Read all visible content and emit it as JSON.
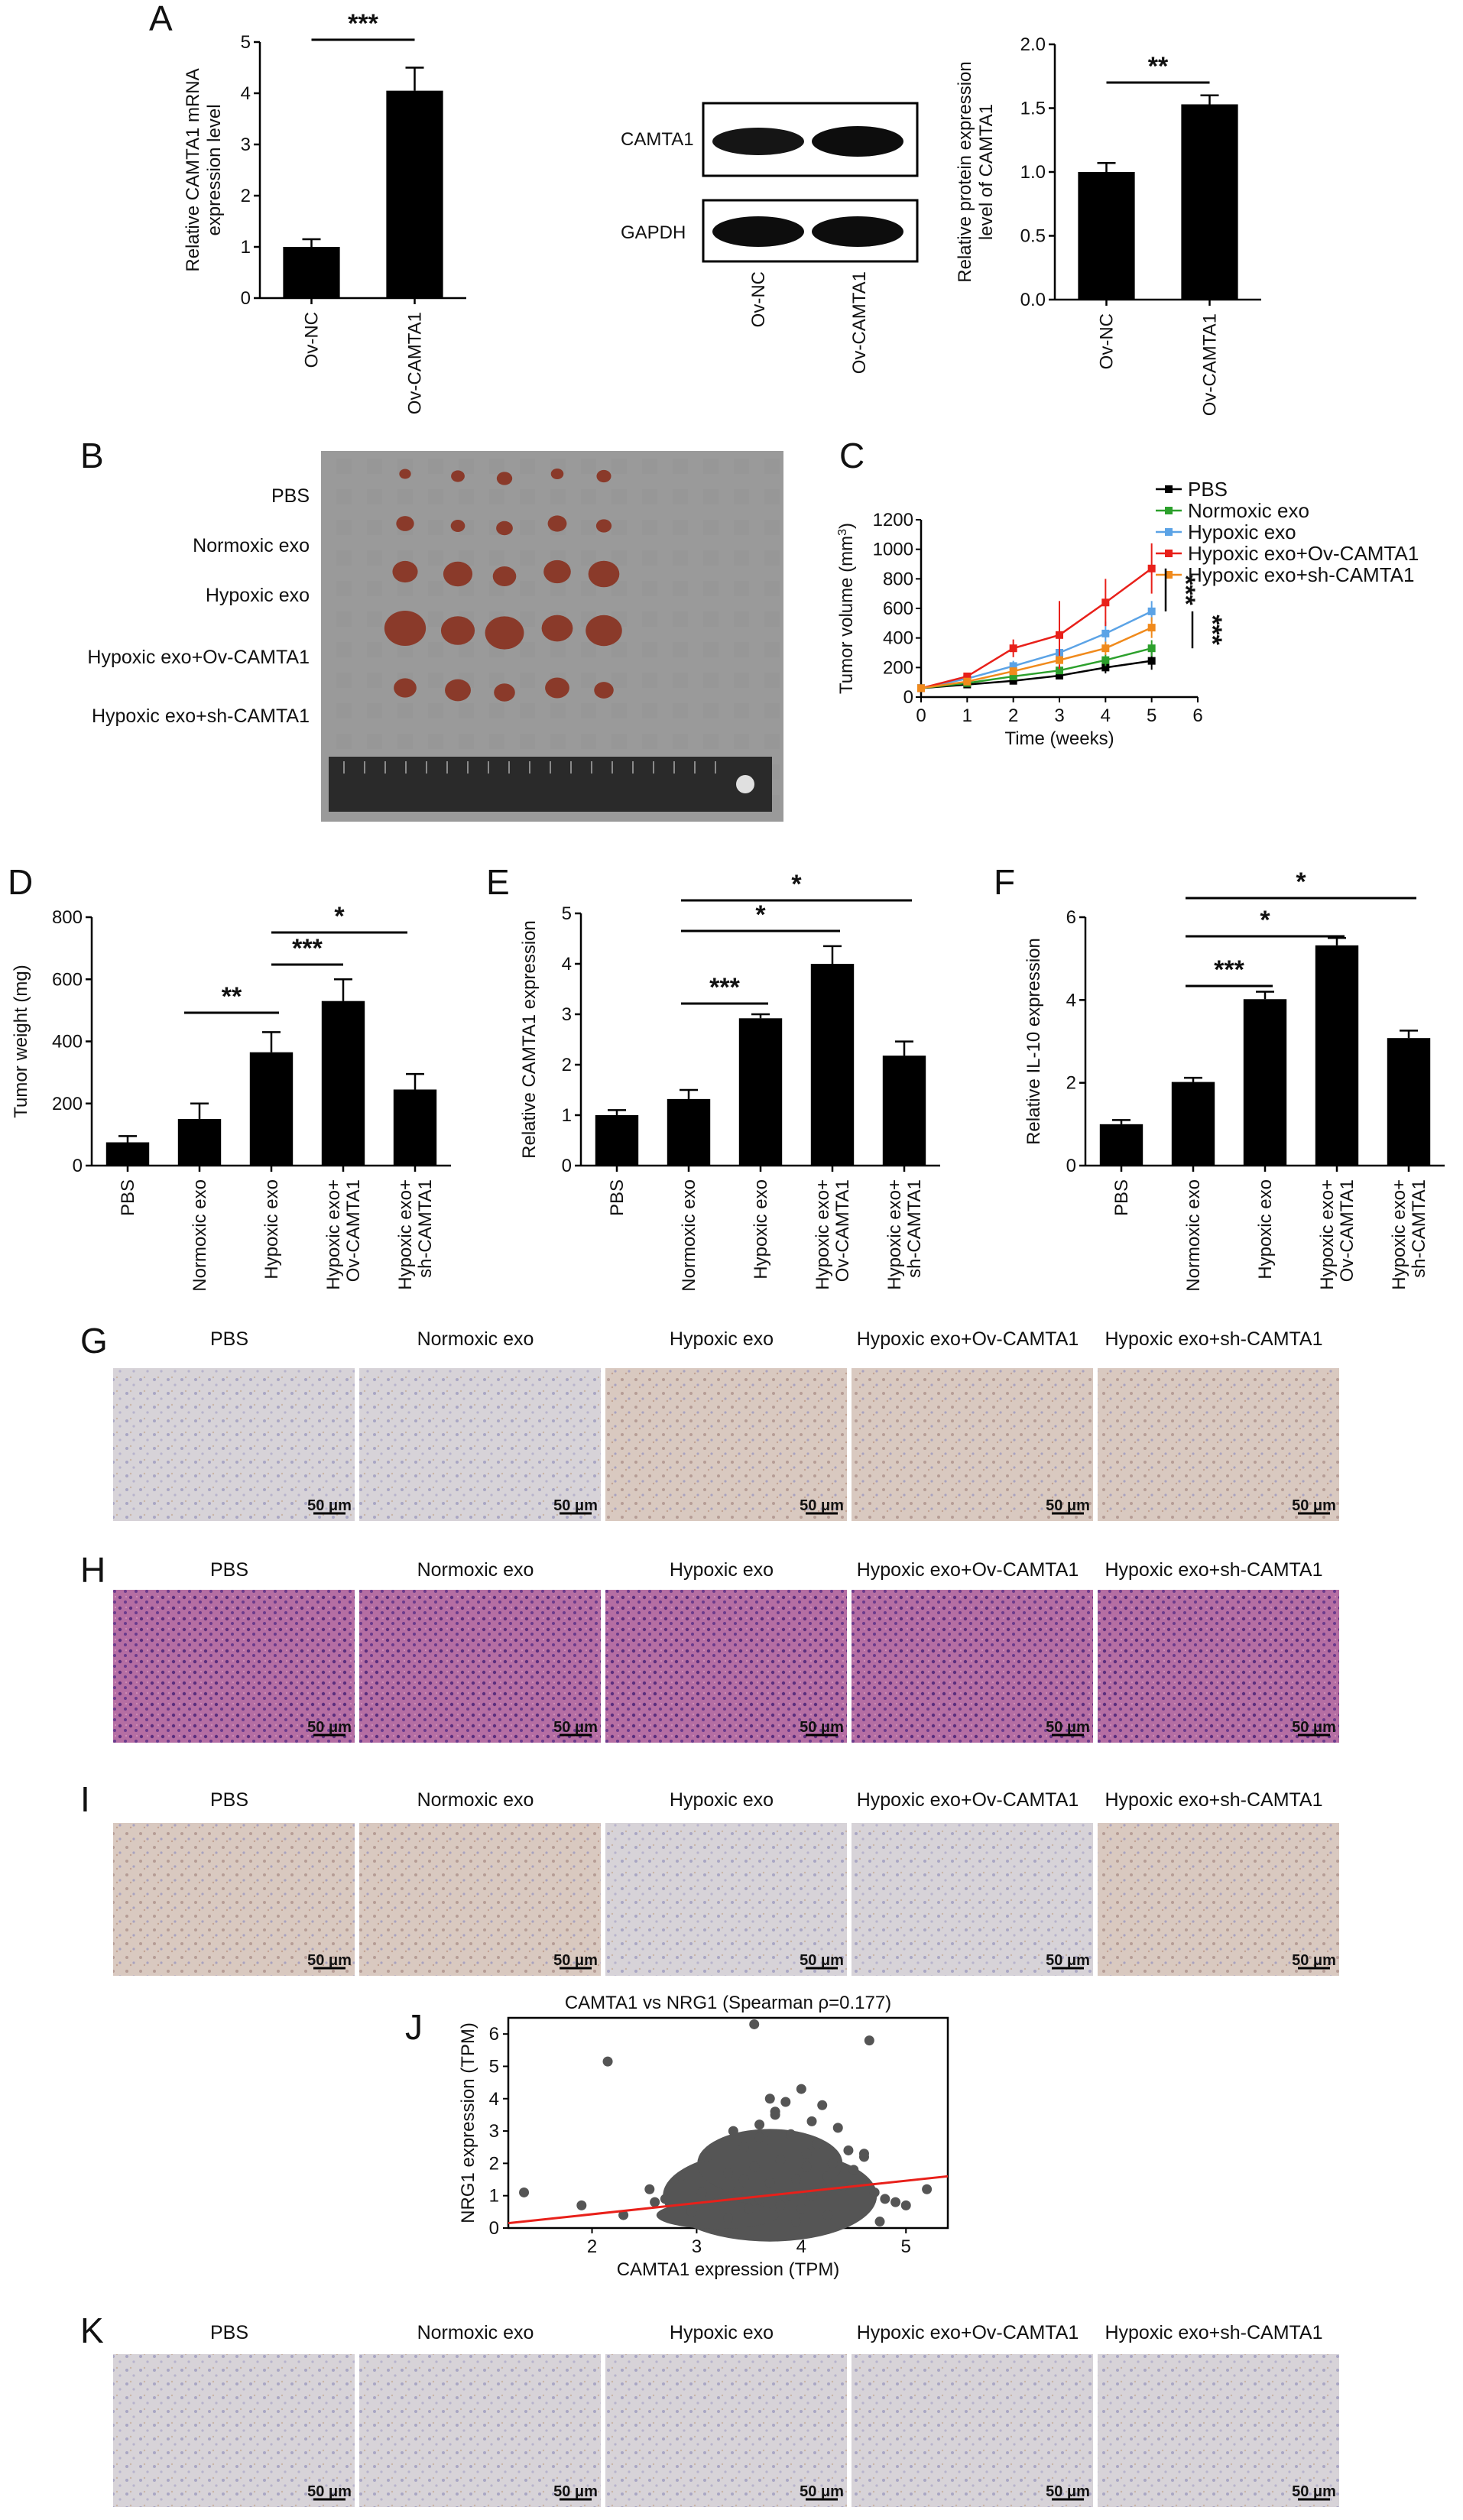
{
  "colors": {
    "bar": "#000000",
    "pbs": "#000000",
    "normoxic": "#2ca02c",
    "hypoxic": "#5ba3e6",
    "ov": "#e8201a",
    "sh": "#f08a1c",
    "fit_line": "#e8201a",
    "scatter": "#555555",
    "tissue_ihc_light": "#d8d4d8",
    "tissue_he": "#b5649a",
    "tumor_tissue": "#8a3a2a"
  },
  "panel_letters": {
    "a": "A",
    "b": "B",
    "c": "C",
    "d": "D",
    "e": "E",
    "f": "F",
    "g": "G",
    "h": "H",
    "i": "I",
    "j": "J",
    "k": "K"
  },
  "significance": {
    "s1": "*",
    "s2": "**",
    "s3": "***"
  },
  "scale_bar": "50 μm",
  "group_labels": [
    "PBS",
    "Normoxic exo",
    "Hypoxic exo",
    "Hypoxic exo+Ov-CAMTA1",
    "Hypoxic exo+sh-CAMTA1"
  ],
  "western_blot": {
    "bands": [
      "CAMTA1",
      "GAPDH"
    ],
    "lanes": [
      "Ov-NC",
      "Ov-CAMTA1"
    ]
  },
  "chart_data": [
    {
      "id": "A-mrna",
      "type": "bar",
      "categories": [
        "Ov-NC",
        "Ov-CAMTA1"
      ],
      "values": [
        1.0,
        4.05
      ],
      "errors": [
        0.15,
        0.45
      ],
      "ylabel": "Relative CAMTA1 mRNA expression level",
      "ylabel_lines": [
        "Relative CAMTA1 mRNA",
        "expression level"
      ],
      "ylim": [
        0,
        5
      ],
      "yticks": [
        "0",
        "1",
        "2",
        "3",
        "4",
        "5"
      ],
      "significance": "***"
    },
    {
      "id": "A-protein",
      "type": "bar",
      "categories": [
        "Ov-NC",
        "Ov-CAMTA1"
      ],
      "values": [
        1.0,
        1.53
      ],
      "errors": [
        0.07,
        0.07
      ],
      "ylabel": "Relative protein expression level of CAMTA1",
      "ylabel_lines": [
        "Relative protein expression",
        "level of CAMTA1"
      ],
      "ylim": [
        0,
        2
      ],
      "yticks": [
        "0.0",
        "0.5",
        "1.0",
        "1.5",
        "2.0"
      ],
      "significance": "**"
    },
    {
      "id": "C",
      "type": "line",
      "x": [
        0,
        1,
        2,
        3,
        4,
        5
      ],
      "xlabel": "Time (weeks)",
      "ylabel": "Tumor volume (mm3)",
      "ylabel_main": "Tumor volume (mm",
      "ylabel_sup": "3",
      "ylabel_close": ")",
      "xlim": [
        0,
        6
      ],
      "ylim": [
        0,
        1200
      ],
      "xticks": [
        "0",
        "1",
        "2",
        "3",
        "4",
        "5",
        "6"
      ],
      "yticks": [
        "0",
        "200",
        "400",
        "600",
        "800",
        "1000",
        "1200"
      ],
      "legend_position": "top-right",
      "significance": [
        "***",
        "***"
      ],
      "series": [
        {
          "name": "PBS",
          "values": [
            60,
            85,
            110,
            145,
            200,
            245
          ],
          "errors": [
            5,
            8,
            15,
            20,
            40,
            60
          ]
        },
        {
          "name": "Normoxic exo",
          "values": [
            60,
            95,
            140,
            180,
            250,
            330
          ],
          "errors": [
            5,
            10,
            20,
            25,
            40,
            55
          ]
        },
        {
          "name": "Hypoxic exo",
          "values": [
            60,
            125,
            210,
            300,
            430,
            580
          ],
          "errors": [
            5,
            15,
            35,
            60,
            80,
            70
          ]
        },
        {
          "name": "Hypoxic exo+Ov-CAMTA1",
          "values": [
            60,
            140,
            330,
            420,
            640,
            870
          ],
          "errors": [
            5,
            25,
            60,
            230,
            160,
            170
          ]
        },
        {
          "name": "Hypoxic exo+sh-CAMTA1",
          "values": [
            60,
            105,
            175,
            250,
            330,
            470
          ],
          "errors": [
            5,
            12,
            25,
            30,
            45,
            70
          ]
        }
      ]
    },
    {
      "id": "D",
      "type": "bar",
      "categories": [
        "PBS",
        "Normoxic exo",
        "Hypoxic exo",
        "Hypoxic exo+ Ov-CAMTA1",
        "Hypoxic exo+ sh-CAMTA1"
      ],
      "values": [
        75,
        150,
        365,
        530,
        245
      ],
      "errors": [
        20,
        50,
        65,
        70,
        50
      ],
      "ylabel": "Tumor weight (mg)",
      "ylim": [
        0,
        800
      ],
      "yticks": [
        "0",
        "200",
        "400",
        "600",
        "800"
      ],
      "significance": [
        "**",
        "***",
        "*"
      ]
    },
    {
      "id": "E",
      "type": "bar",
      "categories": [
        "PBS",
        "Normoxic exo",
        "Hypoxic exo",
        "Hypoxic exo+ Ov-CAMTA1",
        "Hypoxic exo+ sh-CAMTA1"
      ],
      "values": [
        1.0,
        1.32,
        2.92,
        4.0,
        2.18
      ],
      "errors": [
        0.1,
        0.18,
        0.08,
        0.35,
        0.28
      ],
      "ylabel": "Relative CAMTA1 expression",
      "ylim": [
        0,
        5
      ],
      "yticks": [
        "0",
        "1",
        "2",
        "3",
        "4",
        "5"
      ],
      "significance": [
        "***",
        "*",
        "*"
      ]
    },
    {
      "id": "F",
      "type": "bar",
      "categories": [
        "PBS",
        "Normoxic exo",
        "Hypoxic exo",
        "Hypoxic exo+ Ov-CAMTA1",
        "Hypoxic exo+ sh-CAMTA1"
      ],
      "values": [
        1.0,
        2.02,
        4.02,
        5.32,
        3.08
      ],
      "errors": [
        0.1,
        0.1,
        0.18,
        0.18,
        0.18
      ],
      "ylabel": "Relative IL-10 expression",
      "ylim": [
        0,
        6
      ],
      "yticks": [
        "0",
        "2",
        "4",
        "6"
      ],
      "significance": [
        "***",
        "*",
        "*"
      ]
    },
    {
      "id": "J",
      "type": "scatter",
      "title": "CAMTA1 vs NRG1 (Spearman ρ=0.177)",
      "xlabel": "CAMTA1 expression (TPM)",
      "ylabel": "NRG1 expression (TPM)",
      "xlim": [
        1.2,
        5.4
      ],
      "ylim": [
        0,
        6.5
      ],
      "xticks": [
        "2",
        "3",
        "4",
        "5"
      ],
      "yticks": [
        "0",
        "1",
        "2",
        "3",
        "4",
        "5",
        "6"
      ],
      "fit_line": {
        "x": [
          1.2,
          5.4
        ],
        "y": [
          0.15,
          1.6
        ]
      },
      "points_x": [
        1.35,
        1.9,
        2.15,
        2.3,
        2.55,
        2.7,
        2.85,
        2.95,
        3.05,
        3.1,
        3.2,
        3.3,
        3.35,
        3.4,
        3.45,
        3.5,
        3.55,
        3.6,
        3.6,
        3.65,
        3.7,
        3.7,
        3.75,
        3.8,
        3.8,
        3.85,
        3.9,
        3.9,
        3.95,
        4.0,
        4.0,
        4.05,
        4.1,
        4.1,
        4.15,
        4.2,
        4.25,
        4.3,
        4.35,
        4.4,
        4.45,
        4.5,
        4.6,
        4.7,
        4.8,
        4.9,
        5.0,
        5.2,
        3.55,
        3.75,
        4.05,
        3.3,
        3.95,
        4.25,
        3.45,
        3.6,
        4.65,
        4.6,
        2.6,
        4.75
      ],
      "points_y": [
        1.1,
        0.7,
        5.15,
        0.4,
        1.2,
        0.9,
        1.6,
        0.5,
        1.1,
        2.2,
        0.8,
        1.7,
        3.0,
        1.2,
        2.5,
        0.6,
        1.9,
        3.2,
        0.9,
        2.7,
        4.0,
        1.4,
        3.5,
        0.7,
        2.1,
        3.9,
        1.0,
        2.9,
        1.5,
        4.3,
        0.6,
        2.3,
        3.3,
        1.0,
        2.6,
        3.8,
        1.6,
        2.0,
        3.1,
        1.3,
        2.4,
        1.8,
        2.2,
        1.1,
        0.9,
        0.8,
        0.7,
        1.2,
        6.3,
        3.6,
        1.9,
        0.3,
        0.2,
        0.4,
        1.5,
        2.8,
        5.8,
        2.3,
        0.8,
        0.2
      ]
    }
  ]
}
